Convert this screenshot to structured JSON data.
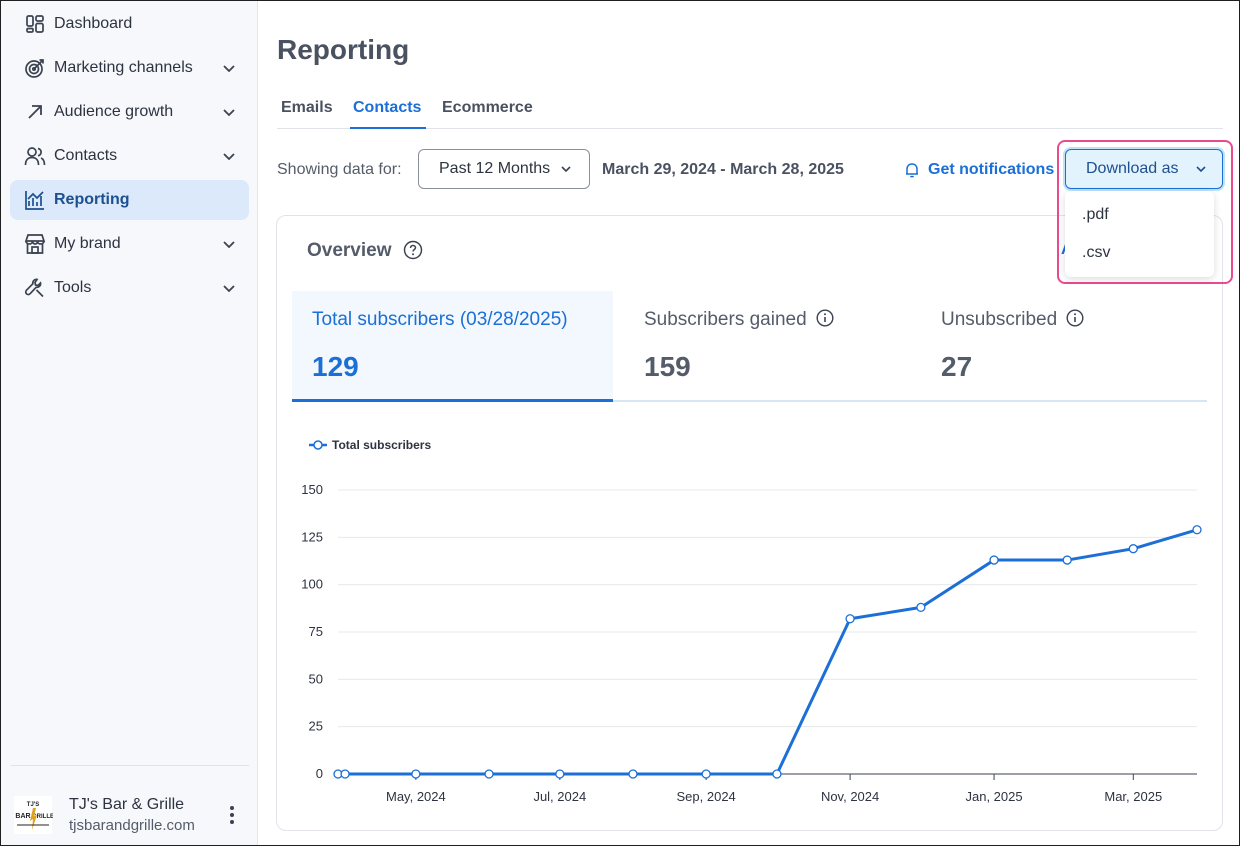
{
  "sidebar": {
    "items": [
      {
        "label": "Dashboard",
        "icon": "dashboard-icon",
        "has_chevron": false,
        "active": false
      },
      {
        "label": "Marketing channels",
        "icon": "target-icon",
        "has_chevron": true,
        "active": false
      },
      {
        "label": "Audience growth",
        "icon": "arrow-up-right-icon",
        "has_chevron": true,
        "active": false
      },
      {
        "label": "Contacts",
        "icon": "contacts-icon",
        "has_chevron": true,
        "active": false
      },
      {
        "label": "Reporting",
        "icon": "chart-icon",
        "has_chevron": false,
        "active": true
      },
      {
        "label": "My brand",
        "icon": "storefront-icon",
        "has_chevron": true,
        "active": false
      },
      {
        "label": "Tools",
        "icon": "wrench-icon",
        "has_chevron": true,
        "active": false
      }
    ],
    "account": {
      "name": "TJ's Bar & Grille",
      "site": "tjsbarandgrille.com",
      "logo_text": "BAR GRILLE"
    }
  },
  "page": {
    "title": "Reporting"
  },
  "tabs": [
    {
      "label": "Emails",
      "active": false
    },
    {
      "label": "Contacts",
      "active": true
    },
    {
      "label": "Ecommerce",
      "active": false
    }
  ],
  "filters": {
    "label": "Showing data for:",
    "period": "Past 12 Months",
    "date_range": "March 29, 2024 - March 28, 2025",
    "notifications_label": "Get notifications"
  },
  "download": {
    "label": "Download as",
    "options": [
      ".pdf",
      ".csv"
    ]
  },
  "overview": {
    "title": "Overview",
    "partial_text": "A",
    "metrics": [
      {
        "label": "Total subscribers (03/28/2025)",
        "value": "129",
        "active": true,
        "has_info": false
      },
      {
        "label": "Subscribers gained",
        "value": "159",
        "active": false,
        "has_info": true
      },
      {
        "label": "Unsubscribed",
        "value": "27",
        "active": false,
        "has_info": true
      }
    ]
  },
  "colors": {
    "accent": "#1b6fd6",
    "highlight": "#ea4a8e",
    "active_nav_bg": "#dbe9fb"
  },
  "chart_data": {
    "type": "line",
    "series": [
      {
        "name": "Total subscribers",
        "x": [
          "2024-03-29",
          "2024-04-01",
          "2024-05-01",
          "2024-06-01",
          "2024-07-01",
          "2024-08-01",
          "2024-09-01",
          "2024-10-01",
          "2024-11-01",
          "2024-12-01",
          "2025-01-01",
          "2025-02-01",
          "2025-03-01",
          "2025-03-28"
        ],
        "values": [
          0,
          0,
          0,
          0,
          0,
          0,
          0,
          0,
          82,
          88,
          113,
          113,
          119,
          129
        ]
      }
    ],
    "x_tick_labels": [
      "May, 2024",
      "Jul, 2024",
      "Sep, 2024",
      "Nov, 2024",
      "Jan, 2025",
      "Mar, 2025"
    ],
    "x_tick_dates": [
      "2024-05-01",
      "2024-07-01",
      "2024-09-01",
      "2024-11-01",
      "2025-01-01",
      "2025-03-01"
    ],
    "y_ticks": [
      0,
      25,
      50,
      75,
      100,
      125,
      150
    ],
    "ylim": [
      0,
      150
    ],
    "xlim": [
      "2024-03-29",
      "2025-03-28"
    ],
    "grid": true,
    "legend": "top-left"
  }
}
